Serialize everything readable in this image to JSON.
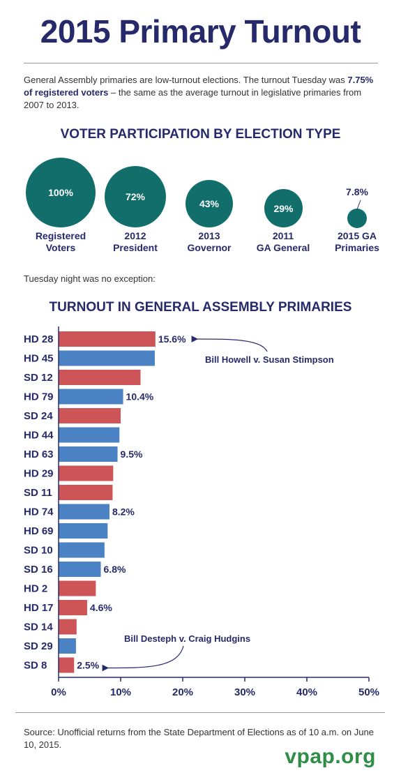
{
  "title": "2015 Primary Turnout",
  "intro": {
    "before": "General Assembly primaries are low-turnout elections. The turnout Tuesday was ",
    "bold": "7.75% of registered voters",
    "after": " – the same as the average turnout in legislative primaries from 2007 to 2013."
  },
  "participation": {
    "heading": "VOTER PARTICIPATION BY ELECTION TYPE",
    "color": "#126e6b",
    "bubbles": [
      {
        "value": "100%",
        "label_line1": "Registered",
        "label_line2": "Voters"
      },
      {
        "value": "72%",
        "label_line1": "2012",
        "label_line2": "President"
      },
      {
        "value": "43%",
        "label_line1": "2013",
        "label_line2": "Governor"
      },
      {
        "value": "29%",
        "label_line1": "2011",
        "label_line2": "GA General"
      },
      {
        "value": "7.8%",
        "label_line1": "2015 GA",
        "label_line2": "Primaries"
      }
    ]
  },
  "note": "Tuesday night was no exception:",
  "chart_heading": "TURNOUT IN GENERAL ASSEMBLY PRIMARIES",
  "chart_data": {
    "type": "bar",
    "orientation": "horizontal",
    "title": "TURNOUT IN GENERAL ASSEMBLY PRIMARIES",
    "categories": [
      "HD 28",
      "HD 45",
      "SD 12",
      "HD 79",
      "SD 24",
      "HD 44",
      "HD 63",
      "HD 29",
      "SD 11",
      "HD 74",
      "HD 69",
      "SD 10",
      "SD 16",
      "HD 2",
      "HD 17",
      "SD 14",
      "SD 29",
      "SD 8"
    ],
    "values": [
      15.6,
      15.5,
      13.2,
      10.4,
      10.0,
      9.8,
      9.5,
      8.8,
      8.7,
      8.2,
      7.9,
      7.4,
      6.8,
      6.0,
      4.6,
      2.9,
      2.8,
      2.5
    ],
    "party_colors": [
      "red",
      "blue",
      "red",
      "blue",
      "red",
      "blue",
      "blue",
      "red",
      "red",
      "blue",
      "blue",
      "blue",
      "blue",
      "red",
      "red",
      "red",
      "blue",
      "red"
    ],
    "data_labels": [
      "15.6%",
      "",
      "",
      "10.4%",
      "",
      "",
      "9.5%",
      "",
      "",
      "8.2%",
      "",
      "",
      "6.8%",
      "",
      "4.6%",
      "",
      "",
      "2.5%"
    ],
    "xlim": [
      0,
      50
    ],
    "xticks": [
      "0%",
      "10%",
      "20%",
      "30%",
      "40%",
      "50%"
    ],
    "xtick_values": [
      0,
      10,
      20,
      30,
      40,
      50
    ],
    "colors": {
      "red": "#cd5558",
      "blue": "#4a82c3",
      "axis": "#262a6b"
    },
    "annotations": [
      {
        "text": "Bill Howell v. Susan Stimpson",
        "target": "HD 28"
      },
      {
        "text": "Bill Desteph v. Craig Hudgins",
        "target": "SD 8"
      }
    ],
    "grid": false
  },
  "source": "Source: Unofficial returns from the State Department of Elections as of 10 a.m. on June 10, 2015.",
  "logo": "vpap.org"
}
